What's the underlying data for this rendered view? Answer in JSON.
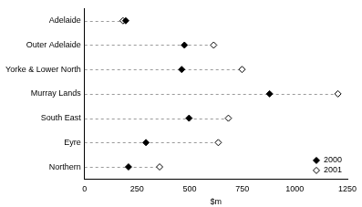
{
  "chart_data": {
    "type": "dot",
    "orientation": "horizontal",
    "categories": [
      "Adelaide",
      "Outer Adelaide",
      "Yorke & Lower North",
      "Murray Lands",
      "South East",
      "Eyre",
      "Northern"
    ],
    "series": [
      {
        "name": "2000",
        "color": "#000000",
        "marker": "diamond",
        "values": [
          196,
          475,
          462,
          880,
          497,
          292,
          209
        ]
      },
      {
        "name": "2001",
        "color": "#000000",
        "marker": "diamond-open",
        "values": [
          183,
          614,
          749,
          1205,
          684,
          636,
          357
        ]
      }
    ],
    "x_label": "$m",
    "xlim": [
      0,
      1250
    ],
    "xticks": [
      0,
      250,
      500,
      750,
      1000,
      1250
    ],
    "grid": false,
    "legend": "lower right"
  }
}
